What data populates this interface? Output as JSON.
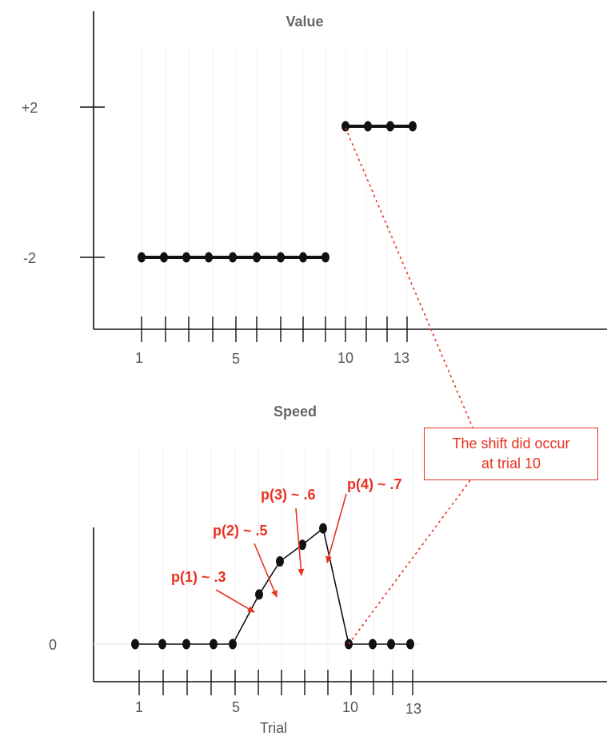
{
  "colors": {
    "accent": "#e8321e",
    "ink": "#111111",
    "grid": "#eeeeee",
    "muted": "#666666"
  },
  "value_panel": {
    "title": "Value",
    "y_labels": [
      "+2",
      "-2"
    ],
    "x_labels": [
      "1",
      "5",
      "10",
      "13"
    ]
  },
  "speed_panel": {
    "title": "Speed",
    "y_labels": [
      "0"
    ],
    "x_labels": [
      "1",
      "5",
      "10",
      "13"
    ],
    "x_axis_label": "Trial"
  },
  "annotations": [
    "p(1) ~ .3",
    "p(2) ~ .5",
    "p(3) ~ .6",
    "p(4) ~ .7"
  ],
  "callout": {
    "line1": "The shift did occur",
    "line2": "at trial 10"
  },
  "chart_data": [
    {
      "type": "line",
      "title": "Value",
      "x": [
        1,
        2,
        3,
        4,
        5,
        6,
        7,
        8,
        9,
        10,
        11,
        12,
        13
      ],
      "series": [
        {
          "values": [
            -2,
            -2,
            -2,
            -2,
            -2,
            -2,
            -2,
            -2,
            -2,
            null,
            null,
            null,
            null
          ]
        },
        {
          "values": [
            null,
            null,
            null,
            null,
            null,
            null,
            null,
            null,
            null,
            2,
            2,
            2,
            2
          ]
        }
      ],
      "yticks": [
        "+2",
        "-2"
      ],
      "xticks": [
        "1",
        "5",
        "10",
        "13"
      ]
    },
    {
      "type": "line",
      "title": "Speed",
      "xlabel": "Trial",
      "x": [
        1,
        2,
        3,
        4,
        5,
        6,
        7,
        8,
        9,
        10,
        11,
        12,
        13
      ],
      "series": [
        {
          "values": [
            0,
            0,
            0,
            0,
            0,
            0.3,
            0.5,
            0.6,
            0.7,
            0,
            0,
            0,
            0
          ]
        }
      ],
      "yticks": [
        "0"
      ],
      "xticks": [
        "1",
        "5",
        "10",
        "13"
      ]
    }
  ]
}
